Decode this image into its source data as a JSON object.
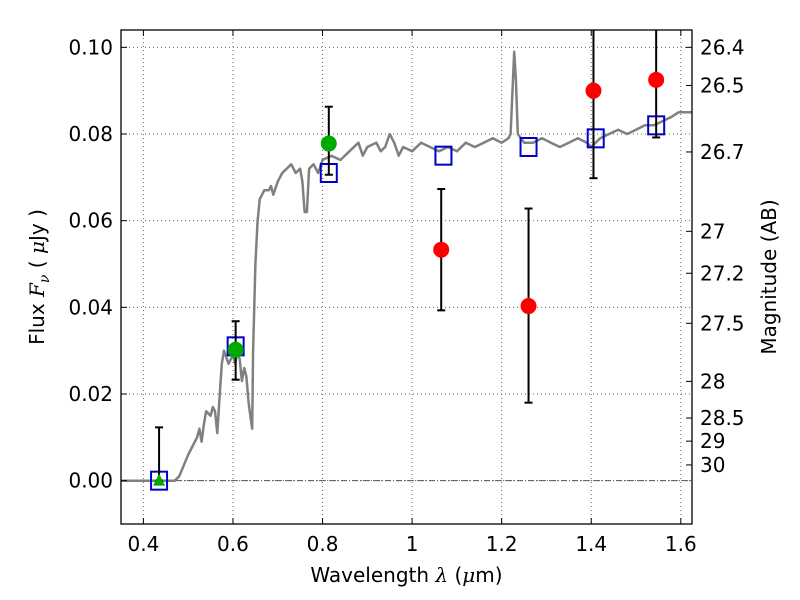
{
  "chart_data": {
    "type": "scatter",
    "xlabel": {
      "text": "Wavelength",
      "symbol": "λ",
      "unit_open": "(",
      "unit_mu": "μ",
      "unit_rest": "m)"
    },
    "ylabel": {
      "text": "Flux",
      "symbol": "F",
      "symbol_sub": "ν",
      "unit_open": "(",
      "unit_mu": "μ",
      "unit_rest": "Jy",
      "unit_close": ")"
    },
    "y2label": "Magnitude (AB)",
    "xlim": [
      0.35,
      1.625
    ],
    "ylim": [
      -0.01,
      0.104
    ],
    "grid": true,
    "x_ticks": [
      {
        "value": 0.4,
        "label": "0.4"
      },
      {
        "value": 0.6,
        "label": "0.6"
      },
      {
        "value": 0.8,
        "label": "0.8"
      },
      {
        "value": 1.0,
        "label": "1"
      },
      {
        "value": 1.2,
        "label": "1.2"
      },
      {
        "value": 1.4,
        "label": "1.4"
      },
      {
        "value": 1.6,
        "label": "1.6"
      }
    ],
    "y_ticks": [
      {
        "value": 0.0,
        "label": "0.00"
      },
      {
        "value": 0.02,
        "label": "0.02"
      },
      {
        "value": 0.04,
        "label": "0.04"
      },
      {
        "value": 0.06,
        "label": "0.06"
      },
      {
        "value": 0.08,
        "label": "0.08"
      },
      {
        "value": 0.1,
        "label": "0.10"
      }
    ],
    "y2_ticks": [
      {
        "mag": 26.4,
        "label": "26.4"
      },
      {
        "mag": 26.5,
        "label": "26.5"
      },
      {
        "mag": 26.7,
        "label": "26.7"
      },
      {
        "mag": 27.0,
        "label": "27"
      },
      {
        "mag": 27.2,
        "label": "27.2"
      },
      {
        "mag": 27.5,
        "label": "27.5"
      },
      {
        "mag": 28.0,
        "label": "28"
      },
      {
        "mag": 28.5,
        "label": "28.5"
      },
      {
        "mag": 29.0,
        "label": "29"
      },
      {
        "mag": 30.0,
        "label": "30"
      }
    ],
    "colors": {
      "spectrum": "#808080",
      "model_box": "#0000cc",
      "red_point": "#ff0000",
      "green_point": "#00aa00",
      "errorbar": "#000000",
      "grid": "#666666"
    },
    "spectrum": [
      [
        0.35,
        0.0
      ],
      [
        0.47,
        0.0
      ],
      [
        0.48,
        0.001
      ],
      [
        0.5,
        0.006
      ],
      [
        0.52,
        0.01
      ],
      [
        0.525,
        0.012
      ],
      [
        0.53,
        0.009
      ],
      [
        0.535,
        0.013
      ],
      [
        0.54,
        0.016
      ],
      [
        0.55,
        0.015
      ],
      [
        0.555,
        0.017
      ],
      [
        0.56,
        0.016
      ],
      [
        0.565,
        0.011
      ],
      [
        0.57,
        0.019
      ],
      [
        0.575,
        0.027
      ],
      [
        0.58,
        0.03
      ],
      [
        0.59,
        0.027
      ],
      [
        0.6,
        0.029
      ],
      [
        0.605,
        0.027
      ],
      [
        0.61,
        0.03
      ],
      [
        0.615,
        0.028
      ],
      [
        0.62,
        0.023
      ],
      [
        0.625,
        0.026
      ],
      [
        0.63,
        0.024
      ],
      [
        0.635,
        0.018
      ],
      [
        0.64,
        0.014
      ],
      [
        0.643,
        0.012
      ],
      [
        0.645,
        0.03
      ],
      [
        0.65,
        0.05
      ],
      [
        0.655,
        0.06
      ],
      [
        0.66,
        0.065
      ],
      [
        0.67,
        0.067
      ],
      [
        0.68,
        0.067
      ],
      [
        0.685,
        0.068
      ],
      [
        0.69,
        0.066
      ],
      [
        0.7,
        0.069
      ],
      [
        0.71,
        0.071
      ],
      [
        0.72,
        0.072
      ],
      [
        0.73,
        0.073
      ],
      [
        0.74,
        0.071
      ],
      [
        0.75,
        0.072
      ],
      [
        0.755,
        0.069
      ],
      [
        0.76,
        0.062
      ],
      [
        0.765,
        0.062
      ],
      [
        0.77,
        0.072
      ],
      [
        0.78,
        0.073
      ],
      [
        0.79,
        0.071
      ],
      [
        0.8,
        0.074
      ],
      [
        0.82,
        0.075
      ],
      [
        0.84,
        0.074
      ],
      [
        0.86,
        0.076
      ],
      [
        0.88,
        0.078
      ],
      [
        0.89,
        0.075
      ],
      [
        0.9,
        0.077
      ],
      [
        0.92,
        0.078
      ],
      [
        0.93,
        0.076
      ],
      [
        0.94,
        0.077
      ],
      [
        0.95,
        0.08
      ],
      [
        0.96,
        0.078
      ],
      [
        0.97,
        0.075
      ],
      [
        0.98,
        0.077
      ],
      [
        1.0,
        0.076
      ],
      [
        1.02,
        0.078
      ],
      [
        1.04,
        0.077
      ],
      [
        1.06,
        0.076
      ],
      [
        1.08,
        0.077
      ],
      [
        1.1,
        0.076
      ],
      [
        1.12,
        0.078
      ],
      [
        1.14,
        0.077
      ],
      [
        1.16,
        0.078
      ],
      [
        1.18,
        0.079
      ],
      [
        1.2,
        0.078
      ],
      [
        1.215,
        0.079
      ],
      [
        1.22,
        0.08
      ],
      [
        1.228,
        0.099
      ],
      [
        1.232,
        0.092
      ],
      [
        1.236,
        0.08
      ],
      [
        1.25,
        0.078
      ],
      [
        1.27,
        0.078
      ],
      [
        1.29,
        0.079
      ],
      [
        1.31,
        0.078
      ],
      [
        1.33,
        0.077
      ],
      [
        1.35,
        0.078
      ],
      [
        1.37,
        0.079
      ],
      [
        1.39,
        0.078
      ],
      [
        1.4,
        0.077
      ],
      [
        1.42,
        0.079
      ],
      [
        1.44,
        0.08
      ],
      [
        1.46,
        0.081
      ],
      [
        1.48,
        0.08
      ],
      [
        1.5,
        0.081
      ],
      [
        1.52,
        0.082
      ],
      [
        1.54,
        0.082
      ],
      [
        1.56,
        0.083
      ],
      [
        1.58,
        0.084
      ],
      [
        1.595,
        0.085
      ],
      [
        1.61,
        0.085
      ],
      [
        1.625,
        0.085
      ]
    ],
    "model_boxes": [
      [
        0.435,
        0.0
      ],
      [
        0.606,
        0.031
      ],
      [
        0.814,
        0.071
      ],
      [
        1.07,
        0.075
      ],
      [
        1.26,
        0.077
      ],
      [
        1.41,
        0.079
      ],
      [
        1.545,
        0.082
      ]
    ],
    "red_points": [
      {
        "x": 1.065,
        "y": 0.0533,
        "err_lo": 0.0393,
        "err_hi": 0.0673
      },
      {
        "x": 1.26,
        "y": 0.0403,
        "err_lo": 0.018,
        "err_hi": 0.0628
      },
      {
        "x": 1.405,
        "y": 0.09,
        "err_lo": 0.0698,
        "err_hi": 0.104
      },
      {
        "x": 1.545,
        "y": 0.0925,
        "err_lo": 0.0792,
        "err_hi": 0.104
      }
    ],
    "green_points": [
      {
        "x": 0.606,
        "y": 0.0302,
        "err_lo": 0.0233,
        "err_hi": 0.0368
      },
      {
        "x": 0.814,
        "y": 0.0778,
        "err_lo": 0.0706,
        "err_hi": 0.0863
      }
    ],
    "green_triangle": {
      "x": 0.435,
      "y": 0.0,
      "err_lo": 0.0,
      "err_hi": 0.0123
    }
  }
}
